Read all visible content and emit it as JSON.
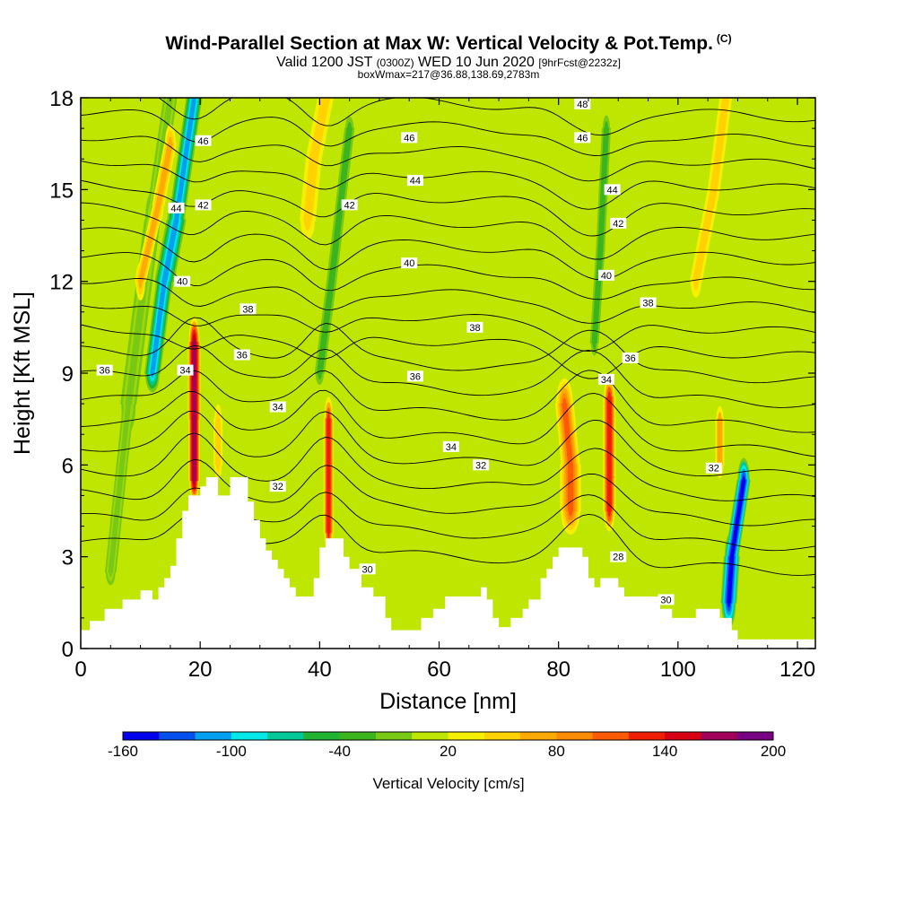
{
  "title": {
    "main": "Wind-Parallel Section at Max W: Vertical Velocity & Pot.Temp.",
    "copyright": "(C)",
    "valid_prefix": "Valid 1200 JST",
    "valid_utc": "(0300Z)",
    "valid_date": "WED 10 Jun 2020",
    "forecast": "[9hrFcst@2232z]",
    "box_info": "boxWmax=217@36.88,138.69,2783m"
  },
  "chart_data": {
    "type": "heatmap",
    "xlabel": "Distance [nm]",
    "ylabel": "Height [Kft MSL]",
    "xlim": [
      0,
      123
    ],
    "ylim": [
      0,
      18
    ],
    "x_ticks": [
      0,
      20,
      40,
      60,
      80,
      100,
      120
    ],
    "y_ticks": [
      0,
      3,
      6,
      9,
      12,
      15,
      18
    ],
    "colorbar": {
      "title": "Vertical Velocity [cm/s]",
      "tick_labels": [
        "-160",
        "-100",
        "-40",
        "20",
        "80",
        "140",
        "200"
      ],
      "levels": [
        -160,
        -140,
        -120,
        -100,
        -80,
        -60,
        -40,
        -20,
        0,
        20,
        40,
        60,
        80,
        100,
        120,
        140,
        160,
        180,
        200
      ],
      "colors": [
        "#0000ee",
        "#0050ee",
        "#00a0ee",
        "#00e8e8",
        "#00c896",
        "#20b432",
        "#3cb41e",
        "#78c814",
        "#bee600",
        "#f5f000",
        "#ffd200",
        "#ffaa00",
        "#ff8c00",
        "#ff5a00",
        "#f01e00",
        "#d70014",
        "#a0005a",
        "#780082"
      ]
    },
    "contour_labels": [
      {
        "x": 4,
        "y": 9.1,
        "text": "36"
      },
      {
        "x": 17.5,
        "y": 9.1,
        "text": "34"
      },
      {
        "x": 27,
        "y": 9.6,
        "text": "36"
      },
      {
        "x": 28,
        "y": 11.1,
        "text": "38"
      },
      {
        "x": 17,
        "y": 12.0,
        "text": "40"
      },
      {
        "x": 16,
        "y": 14.4,
        "text": "44"
      },
      {
        "x": 20.5,
        "y": 14.5,
        "text": "42"
      },
      {
        "x": 20.5,
        "y": 16.6,
        "text": "46"
      },
      {
        "x": 33,
        "y": 7.9,
        "text": "34"
      },
      {
        "x": 33,
        "y": 5.3,
        "text": "32"
      },
      {
        "x": 45,
        "y": 14.5,
        "text": "42"
      },
      {
        "x": 48,
        "y": 2.6,
        "text": "30"
      },
      {
        "x": 55,
        "y": 16.7,
        "text": "46"
      },
      {
        "x": 56,
        "y": 15.3,
        "text": "44"
      },
      {
        "x": 55,
        "y": 12.6,
        "text": "40"
      },
      {
        "x": 66,
        "y": 10.5,
        "text": "38"
      },
      {
        "x": 56,
        "y": 8.9,
        "text": "36"
      },
      {
        "x": 62,
        "y": 6.6,
        "text": "34"
      },
      {
        "x": 67,
        "y": 6.0,
        "text": "32"
      },
      {
        "x": 84,
        "y": 17.8,
        "text": "48"
      },
      {
        "x": 84,
        "y": 16.7,
        "text": "46"
      },
      {
        "x": 89,
        "y": 15.0,
        "text": "44"
      },
      {
        "x": 90,
        "y": 13.9,
        "text": "42"
      },
      {
        "x": 88,
        "y": 12.2,
        "text": "40"
      },
      {
        "x": 95,
        "y": 11.3,
        "text": "38"
      },
      {
        "x": 92,
        "y": 9.5,
        "text": "36"
      },
      {
        "x": 88,
        "y": 8.8,
        "text": "34"
      },
      {
        "x": 106,
        "y": 5.9,
        "text": "32"
      },
      {
        "x": 90,
        "y": 3.0,
        "text": "28"
      },
      {
        "x": 98,
        "y": 1.6,
        "text": "30"
      }
    ]
  }
}
